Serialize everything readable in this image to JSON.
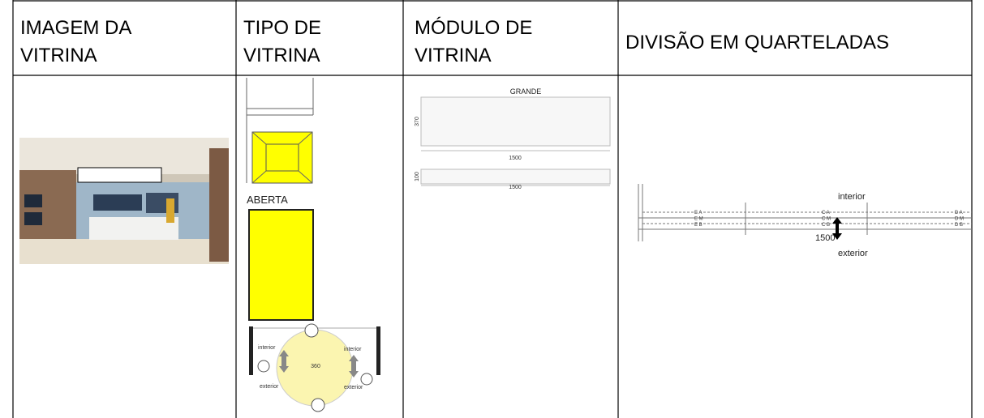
{
  "table": {
    "headers": [
      [
        "IMAGEM DA",
        "VITRINA"
      ],
      [
        "TIPO DE",
        "VITRINA"
      ],
      [
        "MÓDULO DE",
        "VITRINA"
      ],
      [
        "DIVISÃO EM QUARTELADAS"
      ]
    ],
    "type_cell": {
      "label": "ABERTA",
      "diagram": {
        "center": "360",
        "left_top": "interior",
        "left_bottom": "exterior",
        "right_top": "interior",
        "right_bottom": "exterior"
      }
    },
    "module_cell": {
      "title": "GRANDE",
      "large": {
        "height": "370",
        "width": "1500"
      },
      "small": {
        "height": "100",
        "width": "1500"
      }
    },
    "division_cell": {
      "top": "interior",
      "bottom": "exterior",
      "width": "1500",
      "left": [
        "E A",
        "E M",
        "E B"
      ],
      "center": [
        "C A",
        "C M",
        "C B"
      ],
      "right": [
        "D A",
        "D M",
        "D B"
      ]
    }
  }
}
